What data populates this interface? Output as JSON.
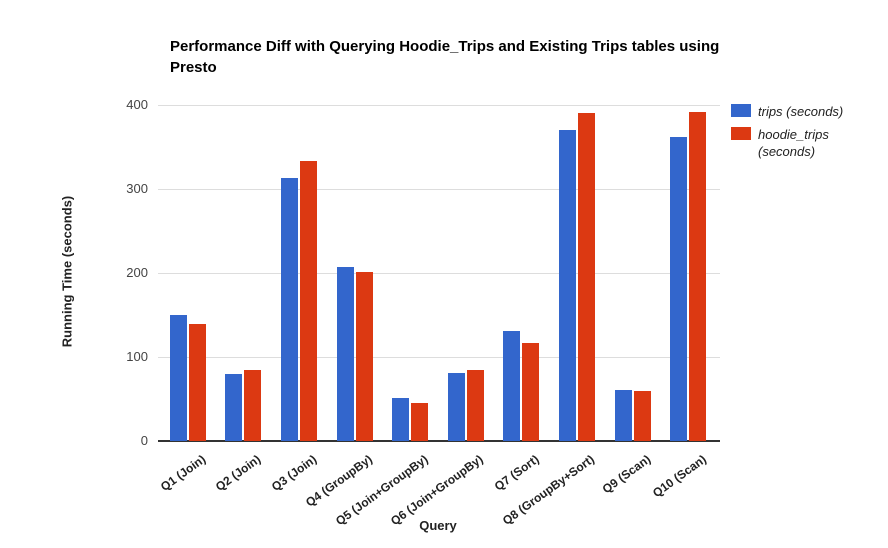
{
  "chart_data": {
    "type": "bar",
    "title": "Performance Diff with Querying Hoodie_Trips and Existing Trips tables using Presto",
    "xlabel": "Query",
    "ylabel": "Running Time (seconds)",
    "ylim": [
      0,
      400
    ],
    "yticks": [
      0,
      100,
      200,
      300,
      400
    ],
    "grid": true,
    "legend_position": "right",
    "categories": [
      "Q1 (Join)",
      "Q2 (Join)",
      "Q3 (Join)",
      "Q4 (GroupBy)",
      "Q5 (Join+GroupBy)",
      "Q6 (Join+GroupBy)",
      "Q7 (Sort)",
      "Q8 (GroupBy+Sort)",
      "Q9 (Scan)",
      "Q10 (Scan)"
    ],
    "series": [
      {
        "name": "trips (seconds)",
        "color": "#3366CC",
        "values": [
          150,
          80,
          313,
          207,
          51,
          81,
          131,
          370,
          61,
          362
        ]
      },
      {
        "name": "hoodie_trips (seconds)",
        "color": "#DC3912",
        "values": [
          139,
          84,
          333,
          201,
          45,
          85,
          117,
          390,
          60,
          392
        ]
      }
    ],
    "colors": {
      "gridline": "#dddddd",
      "axis_baseline": "#333333",
      "tick_label": "#444444",
      "title_text": "#000000"
    }
  }
}
